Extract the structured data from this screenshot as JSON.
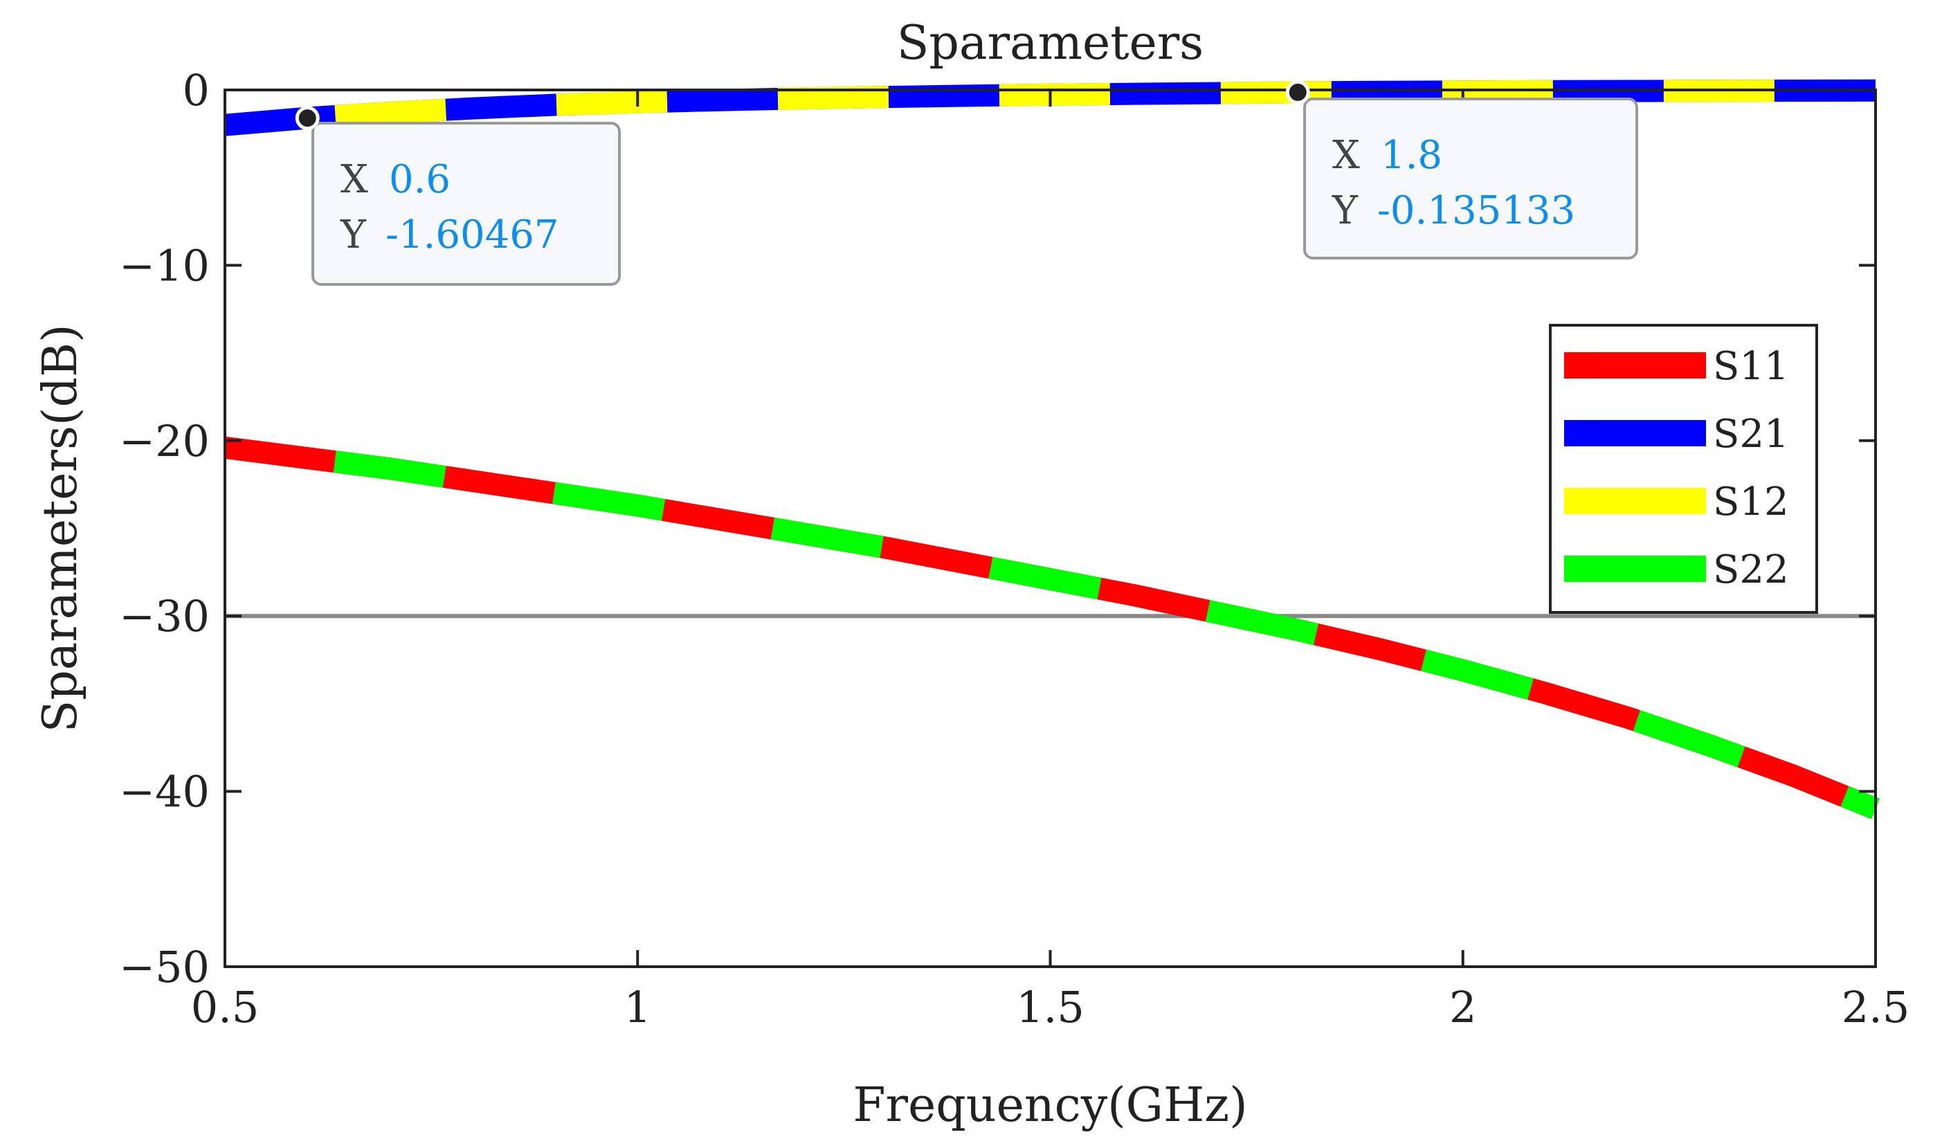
{
  "chart_data": {
    "type": "line",
    "title": "Sparameters",
    "xlabel": "Frequency(GHz)",
    "ylabel": "Sparameters(dB)",
    "xlim": [
      0.5,
      2.5
    ],
    "ylim": [
      -50,
      0
    ],
    "xticks": [
      0.5,
      1,
      1.5,
      2,
      2.5
    ],
    "xtick_labels": [
      "0.5",
      "1",
      "1.5",
      "2",
      "2.5"
    ],
    "yticks": [
      0,
      -10,
      -20,
      -30,
      -40,
      -50
    ],
    "ytick_labels": [
      "0",
      "−10",
      "−20",
      "−30",
      "−40",
      "−50"
    ],
    "grid": false,
    "legend_position": "right",
    "reference_line": {
      "y": -30,
      "color": "#888888"
    },
    "series": [
      {
        "name": "S11",
        "color": "#ff0000",
        "x": [
          0.5,
          0.6,
          0.7,
          0.8,
          0.9,
          1.0,
          1.1,
          1.2,
          1.3,
          1.4,
          1.5,
          1.6,
          1.7,
          1.8,
          1.9,
          2.0,
          2.1,
          2.2,
          2.3,
          2.4,
          2.5
        ],
        "y": [
          -20.4,
          -21.0,
          -21.6,
          -22.3,
          -23.0,
          -23.7,
          -24.5,
          -25.3,
          -26.1,
          -27.0,
          -27.9,
          -28.8,
          -29.8,
          -30.8,
          -31.9,
          -33.1,
          -34.4,
          -35.8,
          -37.4,
          -39.1,
          -41.0
        ]
      },
      {
        "name": "S21",
        "color": "#0000ff",
        "x": [
          0.5,
          0.6,
          0.7,
          0.8,
          0.9,
          1.0,
          1.1,
          1.2,
          1.3,
          1.4,
          1.5,
          1.6,
          1.7,
          1.8,
          1.9,
          2.0,
          2.1,
          2.2,
          2.3,
          2.4,
          2.5
        ],
        "y": [
          -2.0,
          -1.6,
          -1.3,
          -1.05,
          -0.85,
          -0.7,
          -0.58,
          -0.48,
          -0.4,
          -0.33,
          -0.27,
          -0.22,
          -0.18,
          -0.135,
          -0.11,
          -0.09,
          -0.07,
          -0.06,
          -0.05,
          -0.04,
          -0.03
        ]
      },
      {
        "name": "S12",
        "color": "#ffff00",
        "x": [
          0.5,
          0.6,
          0.7,
          0.8,
          0.9,
          1.0,
          1.1,
          1.2,
          1.3,
          1.4,
          1.5,
          1.6,
          1.7,
          1.8,
          1.9,
          2.0,
          2.1,
          2.2,
          2.3,
          2.4,
          2.5
        ],
        "y": [
          -2.0,
          -1.6,
          -1.3,
          -1.05,
          -0.85,
          -0.7,
          -0.58,
          -0.48,
          -0.4,
          -0.33,
          -0.27,
          -0.22,
          -0.18,
          -0.135,
          -0.11,
          -0.09,
          -0.07,
          -0.06,
          -0.05,
          -0.04,
          -0.03
        ]
      },
      {
        "name": "S22",
        "color": "#00ff00",
        "x": [
          0.5,
          0.6,
          0.7,
          0.8,
          0.9,
          1.0,
          1.1,
          1.2,
          1.3,
          1.4,
          1.5,
          1.6,
          1.7,
          1.8,
          1.9,
          2.0,
          2.1,
          2.2,
          2.3,
          2.4,
          2.5
        ],
        "y": [
          -20.4,
          -21.0,
          -21.6,
          -22.3,
          -23.0,
          -23.7,
          -24.5,
          -25.3,
          -26.1,
          -27.0,
          -27.9,
          -28.8,
          -29.8,
          -30.8,
          -31.9,
          -33.1,
          -34.4,
          -35.8,
          -37.4,
          -39.1,
          -41.0
        ]
      }
    ],
    "annotations": [
      {
        "name": "datatip-1",
        "x": 0.6,
        "y": -1.60467,
        "x_label": "X",
        "y_label": "Y",
        "x_text": "0.6",
        "y_text": "-1.60467",
        "value_color": "#0a8ef0"
      },
      {
        "name": "datatip-2",
        "x": 1.8,
        "y": -0.135133,
        "x_label": "X",
        "y_label": "Y",
        "x_text": "1.8",
        "y_text": "-0.135133",
        "value_color": "#0a8ef0"
      }
    ]
  }
}
